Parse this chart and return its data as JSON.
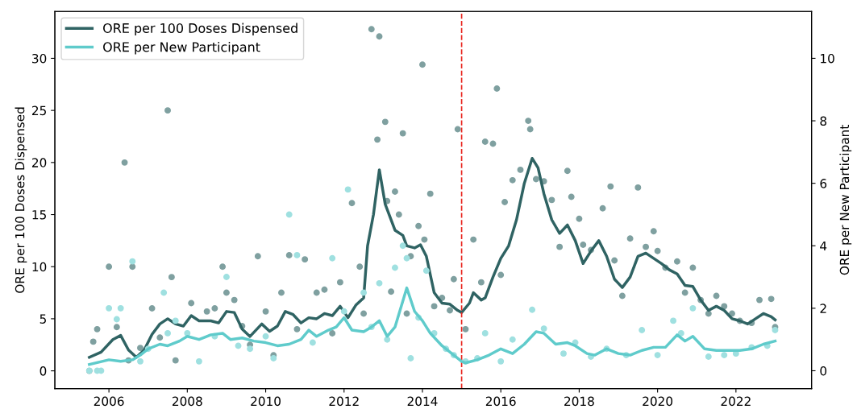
{
  "chart_data": {
    "type": "line",
    "xlabel": null,
    "ylabel": "ORE per 100 Doses Dispensed",
    "y2label": "ORE per New Participant",
    "xlim": [
      2004.62,
      2023.93
    ],
    "xticks": [
      2006,
      2008,
      2010,
      2012,
      2014,
      2016,
      2018,
      2020,
      2022
    ],
    "ylim": [
      -1.7,
      34.5
    ],
    "yticks": [
      0,
      5,
      10,
      15,
      20,
      25,
      30
    ],
    "y2lim": [
      -0.57,
      11.5
    ],
    "y2ticks": [
      0,
      2,
      4,
      6,
      8,
      10
    ],
    "grid": false,
    "legend": "top left",
    "ref_lines": [
      {
        "axis": "x",
        "value": 2015.0,
        "color": "#e8231c",
        "line_style": "dashed"
      }
    ],
    "series": [
      {
        "type": "scatter",
        "axis": "y",
        "color": "#7fa0a0",
        "x": [
          2005.5,
          2005.6,
          2005.7,
          2006.0,
          2006.2,
          2006.4,
          2006.5,
          2006.6,
          2006.8,
          2007.1,
          2007.3,
          2007.5,
          2007.6,
          2007.7,
          2008.1,
          2008.5,
          2008.7,
          2008.9,
          2009.0,
          2009.2,
          2009.4,
          2009.6,
          2009.8,
          2010.0,
          2010.2,
          2010.4,
          2010.6,
          2010.8,
          2011.0,
          2011.3,
          2011.5,
          2011.7,
          2011.9,
          2012.2,
          2012.4,
          2012.5,
          2012.7,
          2012.85,
          2012.9,
          2013.05,
          2013.1,
          2013.2,
          2013.3,
          2013.4,
          2013.5,
          2013.6,
          2013.7,
          2013.9,
          2014.0,
          2014.05,
          2014.2,
          2014.3,
          2014.5,
          2014.7,
          2014.8,
          2014.9,
          2015.1,
          2015.3,
          2015.5,
          2015.6,
          2015.8,
          2015.9,
          2016.0,
          2016.1,
          2016.3,
          2016.5,
          2016.7,
          2016.75,
          2016.9,
          2017.1,
          2017.3,
          2017.5,
          2017.7,
          2017.8,
          2018.0,
          2018.1,
          2018.3,
          2018.6,
          2018.8,
          2018.9,
          2019.1,
          2019.3,
          2019.5,
          2019.7,
          2019.9,
          2020.0,
          2020.2,
          2020.5,
          2020.7,
          2020.9,
          2021.1,
          2021.3,
          2021.5,
          2021.7,
          2021.9,
          2022.1,
          2022.4,
          2022.6,
          2022.9,
          2023.0
        ],
        "values": [
          0,
          2.8,
          4,
          10,
          4.2,
          20,
          1,
          10,
          2.2,
          6,
          3.2,
          25,
          9,
          1,
          6.5,
          5.7,
          6,
          10,
          7.5,
          6.8,
          4.3,
          2.5,
          11,
          5.7,
          1.5,
          7.5,
          11.1,
          4,
          10.7,
          7.5,
          7.8,
          3.6,
          8.5,
          16.1,
          10,
          5.5,
          32.8,
          22.2,
          32.1,
          23.9,
          16.3,
          7.6,
          17.2,
          15,
          22.8,
          5.5,
          11,
          13.9,
          29.4,
          12.6,
          17,
          6.2,
          7,
          5.8,
          8.8,
          23.2,
          4,
          12.6,
          8.5,
          22,
          21.8,
          27.1,
          9.2,
          16.2,
          18.3,
          19.3,
          24,
          23.2,
          18.4,
          18.2,
          16.4,
          11.9,
          19.2,
          16.7,
          14.6,
          12.1,
          11.6,
          15.6,
          17.7,
          10.6,
          7.2,
          12.7,
          17.6,
          11.9,
          13.4,
          11.5,
          9.9,
          10.5,
          7.5,
          9.9,
          6.8,
          5.5,
          7.2,
          6.2,
          5.5,
          4.8,
          4.6,
          6.8,
          6.9,
          4.2
        ]
      },
      {
        "type": "scatter",
        "axis": "y2",
        "color": "#9fe0e0",
        "x": [
          2005.5,
          2005.7,
          2005.8,
          2006.0,
          2006.2,
          2006.3,
          2006.6,
          2006.8,
          2007.0,
          2007.4,
          2007.5,
          2007.7,
          2008.0,
          2008.3,
          2008.7,
          2009.0,
          2009.3,
          2009.6,
          2010.0,
          2010.2,
          2010.6,
          2010.8,
          2011.2,
          2011.7,
          2012.0,
          2012.1,
          2012.5,
          2012.7,
          2012.9,
          2013.1,
          2013.3,
          2013.5,
          2013.6,
          2013.7,
          2013.9,
          2014.1,
          2014.3,
          2014.6,
          2014.8,
          2015.1,
          2015.4,
          2015.6,
          2016.0,
          2016.3,
          2016.8,
          2017.1,
          2017.6,
          2017.9,
          2018.3,
          2018.7,
          2019.2,
          2019.6,
          2020.0,
          2020.4,
          2020.6,
          2020.9,
          2021.3,
          2021.7,
          2022.0,
          2022.4,
          2022.8,
          2023.0
        ],
        "values": [
          0,
          0,
          0,
          2.0,
          1.65,
          2.0,
          3.5,
          0.3,
          0.7,
          2.5,
          1.2,
          1.6,
          1.2,
          0.3,
          1.1,
          3.0,
          0.8,
          0.7,
          1.1,
          0.4,
          5.0,
          3.7,
          0.9,
          3.6,
          1.9,
          5.8,
          2.5,
          1.4,
          2.8,
          1.0,
          3.3,
          4.0,
          3.6,
          0.4,
          1.7,
          3.2,
          1.2,
          0.7,
          0.5,
          0.3,
          0.4,
          1.2,
          0.3,
          1.0,
          1.95,
          1.35,
          0.55,
          0.9,
          0.45,
          0.7,
          0.5,
          1.3,
          0.5,
          1.6,
          1.2,
          2.0,
          0.45,
          0.5,
          0.55,
          0.75,
          0.8,
          1.3
        ]
      },
      {
        "axis": "y",
        "name": "ORE per 100 Doses Dispensed",
        "color": "#2f6363",
        "x": [
          2005.5,
          2005.8,
          2006.1,
          2006.3,
          2006.5,
          2006.7,
          2006.9,
          2007.1,
          2007.3,
          2007.5,
          2007.7,
          2007.9,
          2008.1,
          2008.3,
          2008.6,
          2008.8,
          2009.0,
          2009.2,
          2009.4,
          2009.6,
          2009.9,
          2010.1,
          2010.3,
          2010.5,
          2010.7,
          2010.9,
          2011.1,
          2011.3,
          2011.5,
          2011.7,
          2011.9,
          2012.1,
          2012.3,
          2012.5,
          2012.6,
          2012.75,
          2012.9,
          2013.05,
          2013.3,
          2013.5,
          2013.6,
          2013.8,
          2013.95,
          2014.1,
          2014.3,
          2014.5,
          2014.7,
          2014.9,
          2015.0,
          2015.2,
          2015.3,
          2015.5,
          2015.6,
          2015.8,
          2016.0,
          2016.2,
          2016.4,
          2016.6,
          2016.8,
          2016.95,
          2017.1,
          2017.3,
          2017.5,
          2017.7,
          2017.9,
          2018.1,
          2018.3,
          2018.5,
          2018.7,
          2018.9,
          2019.1,
          2019.3,
          2019.5,
          2019.7,
          2019.9,
          2020.1,
          2020.3,
          2020.5,
          2020.7,
          2020.9,
          2021.1,
          2021.3,
          2021.5,
          2021.7,
          2021.9,
          2022.1,
          2022.3,
          2022.5,
          2022.7,
          2022.9,
          2023.0
        ],
        "values": [
          1.3,
          1.8,
          3.0,
          3.4,
          2.0,
          1.3,
          2.0,
          3.5,
          4.5,
          5.0,
          4.5,
          4.3,
          5.3,
          4.8,
          4.8,
          4.6,
          5.7,
          5.6,
          4.0,
          3.3,
          4.5,
          3.8,
          4.3,
          5.7,
          5.4,
          4.6,
          5.1,
          5.0,
          5.5,
          5.3,
          6.2,
          5.1,
          6.3,
          7.0,
          12,
          15,
          19.3,
          16,
          13.5,
          13.0,
          12,
          11.8,
          12.1,
          11,
          7.5,
          6.5,
          6.4,
          5.8,
          5.6,
          6.5,
          7.5,
          6.8,
          7.0,
          9.0,
          10.8,
          12.0,
          14.5,
          18.0,
          20.4,
          19.5,
          17,
          14.5,
          13.2,
          14.0,
          12.5,
          10.3,
          11.5,
          12.5,
          11.0,
          8.8,
          8.0,
          9.0,
          11.0,
          11.3,
          10.8,
          10.3,
          9.7,
          9.3,
          8.2,
          8.1,
          6.8,
          5.8,
          6.2,
          5.8,
          5.0,
          4.8,
          4.5,
          5.0,
          5.5,
          5.2,
          4.9
        ]
      },
      {
        "axis": "y2",
        "name": "ORE per New Participant",
        "color": "#5fcbcb",
        "x": [
          2005.5,
          2006.0,
          2006.3,
          2006.6,
          2006.8,
          2007.0,
          2007.3,
          2007.5,
          2007.8,
          2008.0,
          2008.3,
          2008.6,
          2008.9,
          2009.1,
          2009.4,
          2009.7,
          2010.0,
          2010.3,
          2010.6,
          2010.9,
          2011.1,
          2011.3,
          2011.6,
          2011.8,
          2012.0,
          2012.2,
          2012.5,
          2012.7,
          2012.9,
          2013.1,
          2013.3,
          2013.6,
          2013.8,
          2014.0,
          2014.2,
          2014.5,
          2014.8,
          2015.0,
          2015.1,
          2015.4,
          2015.7,
          2016.0,
          2016.3,
          2016.6,
          2016.9,
          2017.1,
          2017.4,
          2017.7,
          2017.9,
          2018.2,
          2018.4,
          2018.7,
          2019.0,
          2019.3,
          2019.6,
          2019.9,
          2020.2,
          2020.5,
          2020.7,
          2020.9,
          2021.2,
          2021.5,
          2021.8,
          2022.1,
          2022.4,
          2022.7,
          2023.0
        ],
        "values": [
          0.2,
          0.35,
          0.3,
          0.35,
          0.5,
          0.7,
          0.85,
          0.8,
          0.95,
          1.1,
          1.0,
          1.15,
          1.2,
          1.0,
          1.05,
          0.95,
          0.9,
          0.8,
          0.85,
          1.0,
          1.3,
          1.1,
          1.3,
          1.4,
          1.7,
          1.3,
          1.25,
          1.4,
          1.6,
          1.1,
          1.4,
          2.65,
          1.9,
          1.6,
          1.2,
          0.8,
          0.5,
          0.3,
          0.25,
          0.35,
          0.5,
          0.7,
          0.55,
          0.85,
          1.25,
          1.2,
          0.85,
          0.9,
          0.8,
          0.55,
          0.5,
          0.7,
          0.55,
          0.5,
          0.65,
          0.75,
          0.75,
          1.15,
          0.95,
          1.1,
          0.7,
          0.65,
          0.65,
          0.65,
          0.7,
          0.85,
          0.95
        ]
      }
    ]
  }
}
